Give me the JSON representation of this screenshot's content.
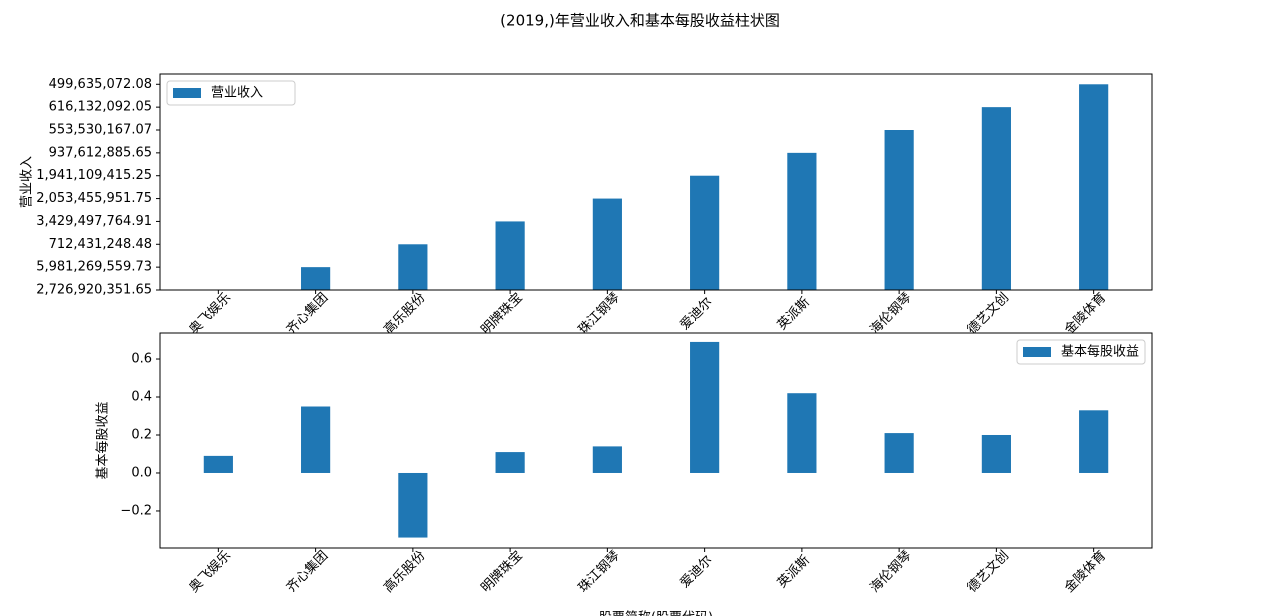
{
  "chart_data": [
    {
      "type": "bar",
      "title": "(2019,)年营业收入和基本每股收益柱状图",
      "ylabel": "营业收入",
      "categories": [
        "奥飞娱乐",
        "齐心集团",
        "高乐股份",
        "明牌珠宝",
        "珠江钢琴",
        "爱迪尔",
        "英派斯",
        "海伦钢琴",
        "德艺文创",
        "金陵体育"
      ],
      "series": [
        {
          "name": "营业收入",
          "color": "#1f77b4",
          "values": [
            0,
            1,
            2,
            3,
            4,
            5,
            6,
            7,
            8,
            9
          ]
        }
      ],
      "ylim": [
        0,
        9.45
      ],
      "yticks": [
        {
          "value": 0,
          "label": "2,726,920,351.65"
        },
        {
          "value": 1,
          "label": "5,981,269,559.73"
        },
        {
          "value": 2,
          "label": "712,431,248.48"
        },
        {
          "value": 3,
          "label": "3,429,497,764.91"
        },
        {
          "value": 4,
          "label": "2,053,455,951.75"
        },
        {
          "value": 5,
          "label": "1,941,109,415.25"
        },
        {
          "value": 6,
          "label": "937,612,885.65"
        },
        {
          "value": 7,
          "label": "553,530,167.07"
        },
        {
          "value": 8,
          "label": "616,132,092.05"
        },
        {
          "value": 9,
          "label": "499,635,072.08"
        }
      ],
      "legend": "upper left"
    },
    {
      "type": "bar",
      "ylabel": "基本每股收益",
      "xlabel": "股票简称(股票代码)",
      "categories": [
        "奥飞娱乐",
        "齐心集团",
        "高乐股份",
        "明牌珠宝",
        "珠江钢琴",
        "爱迪尔",
        "英派斯",
        "海伦钢琴",
        "德艺文创",
        "金陵体育"
      ],
      "series": [
        {
          "name": "基本每股收益",
          "color": "#1f77b4",
          "values": [
            0.09,
            0.35,
            -0.34,
            0.11,
            0.14,
            0.69,
            0.42,
            0.21,
            0.2,
            0.33
          ]
        }
      ],
      "ylim": [
        -0.395,
        0.737
      ],
      "yticks": [
        {
          "value": -0.2,
          "label": "−0.2"
        },
        {
          "value": 0.0,
          "label": "0.0"
        },
        0.2,
        0.4,
        0.6
      ],
      "legend": "upper right"
    }
  ]
}
